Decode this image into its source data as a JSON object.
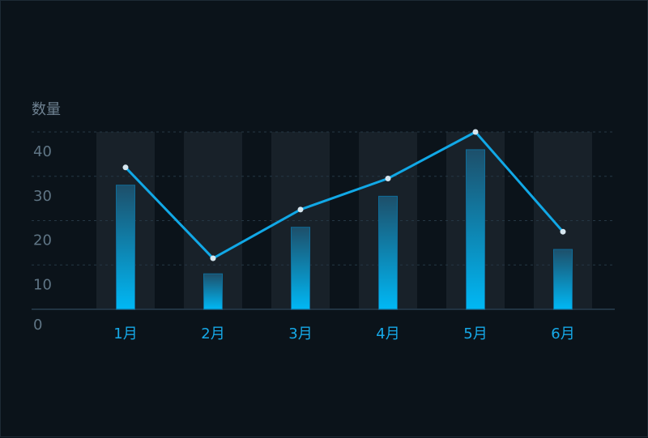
{
  "chart_data": {
    "type": "bar",
    "categories": [
      "1月",
      "2月",
      "3月",
      "4月",
      "5月",
      "6月"
    ],
    "series": [
      {
        "type": "bar",
        "values": [
          28,
          8,
          18.5,
          25.5,
          36,
          13.5
        ]
      },
      {
        "type": "line",
        "values": [
          32,
          11.5,
          22.5,
          29.5,
          40,
          17.5
        ]
      }
    ],
    "ylabel": "数量",
    "yticks": [
      "0",
      "10",
      "20",
      "30",
      "40"
    ],
    "ylim": [
      0,
      40
    ],
    "grid": true,
    "colors": {
      "bar_top": "#1d4f6a",
      "bar_bottom": "#00b8f5",
      "bar_edge": "#0f6c98",
      "line": "#11a8e6",
      "marker": "#d6e6ef",
      "band": "#182129",
      "grid": "#253744",
      "axis": "#223442"
    }
  }
}
